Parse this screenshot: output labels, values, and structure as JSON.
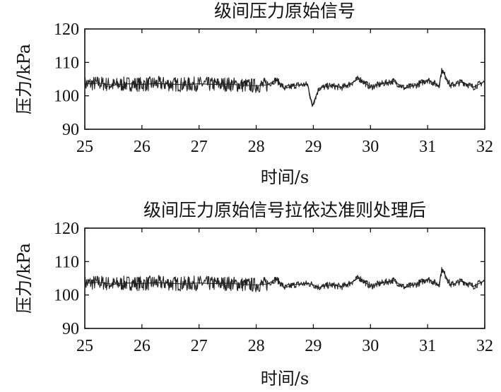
{
  "chart_data": [
    {
      "type": "line",
      "title": "级间压力原始信号",
      "xlabel": "时间/s",
      "ylabel": "压力/kPa",
      "xlim": [
        25,
        32
      ],
      "ylim": [
        90,
        120
      ],
      "xticks": [
        "25",
        "26",
        "27",
        "28",
        "29",
        "30",
        "31",
        "32"
      ],
      "yticks": [
        "90",
        "100",
        "110",
        "120"
      ],
      "grid": false,
      "series": [
        {
          "color": "#222222",
          "x": [
            25.0,
            25.25,
            25.5,
            25.75,
            26.0,
            26.25,
            26.5,
            26.75,
            27.0,
            27.25,
            27.5,
            27.75,
            28.0,
            28.2,
            28.35,
            28.5,
            28.7,
            28.9,
            28.98,
            29.1,
            29.3,
            29.5,
            29.65,
            29.8,
            30.0,
            30.2,
            30.4,
            30.6,
            30.8,
            31.0,
            31.2,
            31.25,
            31.4,
            31.6,
            31.8,
            32.0
          ],
          "y": [
            103.5,
            103.8,
            103.2,
            103.6,
            103.4,
            103.7,
            103.5,
            103.3,
            103.6,
            103.4,
            103.5,
            103.2,
            103.0,
            103.3,
            104.8,
            102.2,
            103.2,
            103.4,
            97.0,
            102.3,
            103.0,
            102.5,
            103.6,
            105.2,
            102.6,
            103.6,
            104.4,
            102.3,
            103.2,
            104.8,
            103.0,
            107.8,
            103.0,
            104.2,
            102.6,
            104.3
          ]
        }
      ]
    },
    {
      "type": "line",
      "title": "级间压力原始信号拉依达准则处理后",
      "xlabel": "时间/s",
      "ylabel": "压力/kPa",
      "xlim": [
        25,
        32
      ],
      "ylim": [
        90,
        120
      ],
      "xticks": [
        "25",
        "26",
        "27",
        "28",
        "29",
        "30",
        "31",
        "32"
      ],
      "yticks": [
        "90",
        "100",
        "110",
        "120"
      ],
      "grid": false,
      "series": [
        {
          "color": "#222222",
          "x": [
            25.0,
            25.25,
            25.5,
            25.75,
            26.0,
            26.25,
            26.5,
            26.75,
            27.0,
            27.25,
            27.5,
            27.75,
            28.0,
            28.2,
            28.35,
            28.5,
            28.7,
            28.9,
            28.98,
            29.1,
            29.3,
            29.5,
            29.65,
            29.8,
            30.0,
            30.2,
            30.4,
            30.6,
            30.8,
            31.0,
            31.2,
            31.25,
            31.4,
            31.6,
            31.8,
            32.0
          ],
          "y": [
            103.5,
            103.8,
            103.2,
            103.6,
            103.4,
            103.7,
            103.5,
            103.3,
            103.6,
            103.4,
            103.5,
            103.2,
            103.0,
            103.3,
            104.8,
            102.2,
            103.2,
            103.4,
            103.2,
            102.3,
            103.0,
            102.5,
            103.6,
            105.2,
            102.6,
            103.6,
            104.4,
            102.3,
            103.2,
            104.8,
            103.0,
            107.8,
            103.0,
            104.2,
            102.6,
            104.3
          ]
        }
      ]
    }
  ]
}
